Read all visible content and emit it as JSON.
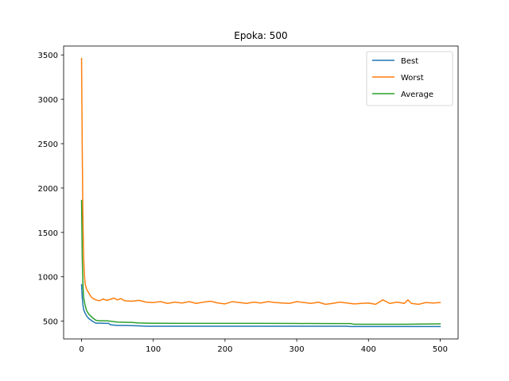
{
  "chart_data": {
    "type": "line",
    "title": "Epoka: 500",
    "xlabel": "",
    "ylabel": "",
    "xlim": [
      -25,
      525
    ],
    "ylim": [
      300,
      3600
    ],
    "x_ticks": [
      0,
      100,
      200,
      300,
      400,
      500
    ],
    "y_ticks": [
      500,
      1000,
      1500,
      2000,
      2500,
      3000,
      3500
    ],
    "grid": false,
    "legend_position": "top-right",
    "series": [
      {
        "name": "Best",
        "color": "#1f77b4",
        "x": [
          0,
          1,
          2,
          3,
          5,
          7,
          10,
          15,
          20,
          25,
          30,
          35,
          38,
          40,
          45,
          50,
          60,
          70,
          80,
          85,
          90,
          100,
          150,
          200,
          250,
          300,
          350,
          370,
          375,
          400,
          450,
          500
        ],
        "y": [
          910,
          760,
          680,
          630,
          590,
          560,
          530,
          500,
          478,
          478,
          477,
          476,
          476,
          460,
          455,
          452,
          452,
          450,
          448,
          445,
          443,
          443,
          443,
          443,
          443,
          443,
          443,
          443,
          440,
          440,
          440,
          440
        ]
      },
      {
        "name": "Worst",
        "color": "#ff7f0e",
        "x": [
          0,
          1,
          2,
          3,
          4,
          5,
          7,
          10,
          12,
          15,
          20,
          25,
          30,
          35,
          40,
          45,
          50,
          55,
          60,
          70,
          80,
          90,
          100,
          110,
          120,
          130,
          140,
          150,
          160,
          170,
          180,
          190,
          200,
          210,
          220,
          230,
          240,
          250,
          260,
          270,
          280,
          290,
          300,
          310,
          320,
          330,
          340,
          350,
          360,
          370,
          380,
          390,
          400,
          410,
          420,
          430,
          440,
          450,
          455,
          460,
          470,
          480,
          490,
          500
        ],
        "y": [
          3460,
          2400,
          1600,
          1200,
          1020,
          920,
          860,
          820,
          790,
          760,
          740,
          730,
          750,
          735,
          745,
          760,
          740,
          755,
          730,
          725,
          735,
          715,
          710,
          720,
          700,
          715,
          705,
          720,
          700,
          715,
          725,
          705,
          695,
          720,
          710,
          700,
          715,
          705,
          720,
          710,
          705,
          700,
          720,
          710,
          700,
          715,
          690,
          700,
          715,
          705,
          695,
          700,
          705,
          690,
          740,
          700,
          715,
          700,
          740,
          700,
          690,
          710,
          705,
          710
        ]
      },
      {
        "name": "Average",
        "color": "#2ca02c",
        "x": [
          0,
          1,
          2,
          3,
          5,
          7,
          10,
          15,
          20,
          25,
          30,
          35,
          40,
          45,
          50,
          60,
          70,
          80,
          90,
          100,
          150,
          200,
          250,
          300,
          350,
          375,
          380,
          400,
          450,
          500
        ],
        "y": [
          1860,
          1200,
          900,
          760,
          680,
          620,
          580,
          540,
          510,
          505,
          505,
          505,
          500,
          495,
          490,
          488,
          485,
          480,
          478,
          477,
          476,
          475,
          475,
          474,
          473,
          473,
          465,
          465,
          465,
          470
        ]
      }
    ]
  }
}
